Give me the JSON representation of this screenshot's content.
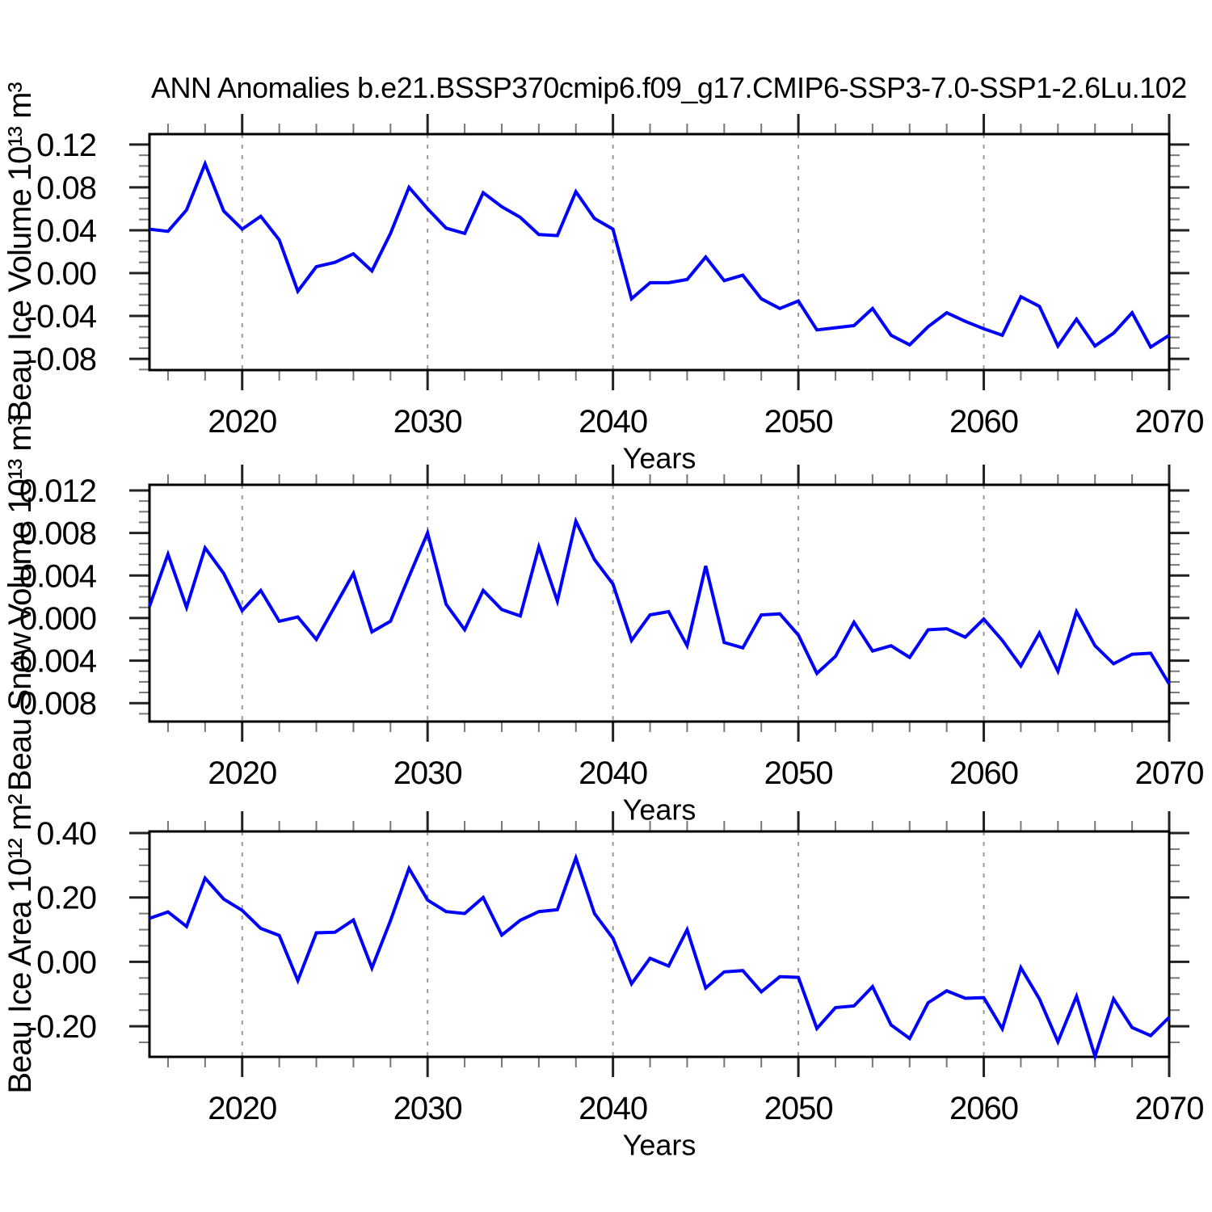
{
  "title": "ANN Anomalies b.e21.BSSP370cmip6.f09_g17.CMIP6-SSP3-7.0-SSP1-2.6Lu.102",
  "colors": {
    "line": "#0000ff",
    "grid": "#9a9a9a",
    "axis": "#000000",
    "background": "#ffffff"
  },
  "chart_data": [
    {
      "type": "line",
      "name": "ice-volume",
      "ylabel": "Beau Ice Volume 10¹³ m³",
      "xlabel": "Years",
      "legend": "none",
      "grid": "vertical-dashed",
      "xlim": [
        2015,
        2070
      ],
      "ylim": [
        -0.0905,
        0.1297
      ],
      "xticks": [
        2020,
        2030,
        2040,
        2050,
        2060,
        2070
      ],
      "xtick_labels": [
        "2020",
        "2030",
        "2040",
        "2050",
        "2060",
        "2070"
      ],
      "xminor_step": 2,
      "grid_x": [
        2020,
        2030,
        2040,
        2050,
        2060
      ],
      "yticks": [
        0.12,
        0.08,
        0.04,
        0.0,
        -0.04,
        -0.08
      ],
      "ytick_labels": [
        "0.12",
        "0.08",
        "0.04",
        "0.00",
        "-0.04",
        "-0.08"
      ],
      "yminor_step": 0.01,
      "x": [
        2015,
        2016,
        2017,
        2018,
        2019,
        2020,
        2021,
        2022,
        2023,
        2024,
        2025,
        2026,
        2027,
        2028,
        2029,
        2030,
        2031,
        2032,
        2033,
        2034,
        2035,
        2036,
        2037,
        2038,
        2039,
        2040,
        2041,
        2042,
        2043,
        2044,
        2045,
        2046,
        2047,
        2048,
        2049,
        2050,
        2051,
        2052,
        2053,
        2054,
        2055,
        2056,
        2057,
        2058,
        2059,
        2060,
        2061,
        2062,
        2063,
        2064,
        2065,
        2066,
        2067,
        2068,
        2069,
        2070
      ],
      "values": [
        0.041,
        0.039,
        0.059,
        0.102,
        0.058,
        0.041,
        0.053,
        0.031,
        -0.017,
        0.006,
        0.01,
        0.018,
        0.002,
        0.037,
        0.08,
        0.06,
        0.042,
        0.037,
        0.075,
        0.062,
        0.052,
        0.036,
        0.035,
        0.076,
        0.051,
        0.041,
        -0.024,
        -0.009,
        -0.009,
        -0.006,
        0.015,
        -0.007,
        -0.002,
        -0.024,
        -0.033,
        -0.026,
        -0.053,
        -0.051,
        -0.049,
        -0.033,
        -0.058,
        -0.067,
        -0.05,
        -0.037,
        -0.045,
        -0.052,
        -0.058,
        -0.022,
        -0.031,
        -0.068,
        -0.043,
        -0.068,
        -0.056,
        -0.037,
        -0.069,
        -0.058
      ]
    },
    {
      "type": "line",
      "name": "snow-volume",
      "ylabel": "Beau Snow Volume 10¹³ m³",
      "xlabel": "Years",
      "legend": "none",
      "grid": "vertical-dashed",
      "xlim": [
        2015,
        2070
      ],
      "ylim": [
        -0.00973,
        0.01253
      ],
      "xticks": [
        2020,
        2030,
        2040,
        2050,
        2060,
        2070
      ],
      "xtick_labels": [
        "2020",
        "2030",
        "2040",
        "2050",
        "2060",
        "2070"
      ],
      "xminor_step": 2,
      "grid_x": [
        2020,
        2030,
        2040,
        2050,
        2060
      ],
      "yticks": [
        0.012,
        0.008,
        0.004,
        0.0,
        -0.004,
        -0.008
      ],
      "ytick_labels": [
        "0.012",
        "0.008",
        "0.004",
        "0.000",
        "-0.004",
        "-0.008"
      ],
      "yminor_step": 0.001,
      "x": [
        2015,
        2016,
        2017,
        2018,
        2019,
        2020,
        2021,
        2022,
        2023,
        2024,
        2025,
        2026,
        2027,
        2028,
        2029,
        2030,
        2031,
        2032,
        2033,
        2034,
        2035,
        2036,
        2037,
        2038,
        2039,
        2040,
        2041,
        2042,
        2043,
        2044,
        2045,
        2046,
        2047,
        2048,
        2049,
        2050,
        2051,
        2052,
        2053,
        2054,
        2055,
        2056,
        2057,
        2058,
        2059,
        2060,
        2061,
        2062,
        2063,
        2064,
        2065,
        2066,
        2067,
        2068,
        2069,
        2070
      ],
      "values": [
        0.0011,
        0.006,
        0.001,
        0.0066,
        0.0042,
        0.0007,
        0.0026,
        -0.0003,
        0.0001,
        -0.002,
        0.0011,
        0.0042,
        -0.0013,
        -0.0003,
        0.0039,
        0.008,
        0.0013,
        -0.0011,
        0.0026,
        0.0008,
        0.0002,
        0.0067,
        0.0016,
        0.0091,
        0.0055,
        0.0032,
        -0.0021,
        0.0003,
        0.0006,
        -0.0026,
        0.0049,
        -0.0023,
        -0.0028,
        0.0003,
        0.0004,
        -0.0016,
        -0.0052,
        -0.0036,
        -0.0004,
        -0.0031,
        -0.0026,
        -0.0037,
        -0.0011,
        -0.001,
        -0.0018,
        -0.0001,
        -0.0021,
        -0.0045,
        -0.0014,
        -0.005,
        0.0006,
        -0.0026,
        -0.0043,
        -0.0034,
        -0.0033,
        -0.0062
      ]
    },
    {
      "type": "line",
      "name": "ice-area",
      "ylabel": "Beau Ice Area 10¹² m²",
      "xlabel": "Years",
      "legend": "none",
      "grid": "vertical-dashed",
      "xlim": [
        2015,
        2070
      ],
      "ylim": [
        -0.295,
        0.405
      ],
      "xticks": [
        2020,
        2030,
        2040,
        2050,
        2060,
        2070
      ],
      "xtick_labels": [
        "2020",
        "2030",
        "2040",
        "2050",
        "2060",
        "2070"
      ],
      "xminor_step": 2,
      "grid_x": [
        2020,
        2030,
        2040,
        2050,
        2060
      ],
      "yticks": [
        0.4,
        0.2,
        0.0,
        -0.2
      ],
      "ytick_labels": [
        "0.40",
        "0.20",
        "0.00",
        "-0.20"
      ],
      "yminor_step": 0.05,
      "x": [
        2015,
        2016,
        2017,
        2018,
        2019,
        2020,
        2021,
        2022,
        2023,
        2024,
        2025,
        2026,
        2027,
        2028,
        2029,
        2030,
        2031,
        2032,
        2033,
        2034,
        2035,
        2036,
        2037,
        2038,
        2039,
        2040,
        2041,
        2042,
        2043,
        2044,
        2045,
        2046,
        2047,
        2048,
        2049,
        2050,
        2051,
        2052,
        2053,
        2054,
        2055,
        2056,
        2057,
        2058,
        2059,
        2060,
        2061,
        2062,
        2063,
        2064,
        2065,
        2066,
        2067,
        2068,
        2069,
        2070
      ],
      "values": [
        0.135,
        0.155,
        0.11,
        0.26,
        0.195,
        0.16,
        0.104,
        0.082,
        -0.058,
        0.09,
        0.092,
        0.13,
        -0.019,
        0.128,
        0.29,
        0.192,
        0.156,
        0.15,
        0.2,
        0.083,
        0.129,
        0.156,
        0.162,
        0.323,
        0.15,
        0.073,
        -0.068,
        0.011,
        -0.013,
        0.1,
        -0.081,
        -0.031,
        -0.027,
        -0.093,
        -0.046,
        -0.048,
        -0.207,
        -0.142,
        -0.137,
        -0.077,
        -0.196,
        -0.238,
        -0.127,
        -0.09,
        -0.113,
        -0.111,
        -0.208,
        -0.018,
        -0.115,
        -0.248,
        -0.107,
        -0.293,
        -0.115,
        -0.204,
        -0.229,
        -0.172
      ]
    }
  ]
}
